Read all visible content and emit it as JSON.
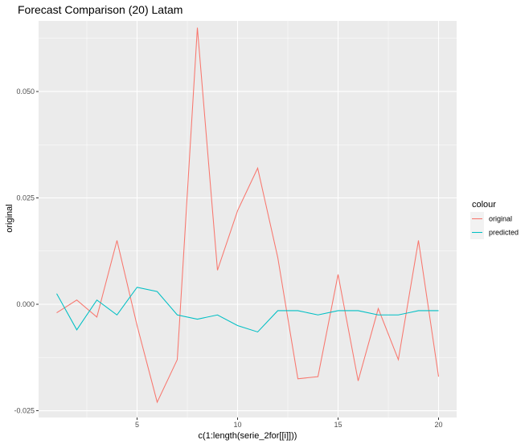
{
  "chart_data": {
    "type": "line",
    "title": "Forecast Comparison (20) Latam",
    "xlabel": "c(1:length(serie_2for[[i]]))",
    "ylabel": "original",
    "xlim": [
      0.1,
      20.9
    ],
    "ylim": [
      -0.0266,
      0.0666
    ],
    "x_ticks": [
      5,
      10,
      15,
      20
    ],
    "x_tick_labels": [
      "5",
      "10",
      "15",
      "20"
    ],
    "y_ticks": [
      -0.025,
      0.0,
      0.025,
      0.05
    ],
    "y_tick_labels": [
      "-0.025",
      "0.000",
      "0.025",
      "0.050"
    ],
    "grid": true,
    "panel_background": "#ebebeb",
    "legend": {
      "title": "colour",
      "position": "right"
    },
    "x": [
      1,
      2,
      3,
      4,
      5,
      6,
      7,
      8,
      9,
      10,
      11,
      12,
      13,
      14,
      15,
      16,
      17,
      18,
      19,
      20
    ],
    "series": [
      {
        "name": "original",
        "color": "#F8766D",
        "values": [
          -0.002,
          0.001,
          -0.003,
          0.015,
          -0.005,
          -0.023,
          -0.013,
          0.065,
          0.008,
          0.022,
          0.032,
          0.011,
          -0.0175,
          -0.017,
          0.007,
          -0.018,
          -0.001,
          -0.013,
          0.015,
          -0.017
        ]
      },
      {
        "name": "predicted",
        "color": "#00BFC4",
        "values": [
          0.0025,
          -0.006,
          0.001,
          -0.0025,
          0.004,
          0.003,
          -0.0025,
          -0.0035,
          -0.0025,
          -0.005,
          -0.0065,
          -0.0015,
          -0.0015,
          -0.0025,
          -0.0015,
          -0.0015,
          -0.0025,
          -0.0025,
          -0.0015,
          -0.0015
        ]
      }
    ]
  }
}
